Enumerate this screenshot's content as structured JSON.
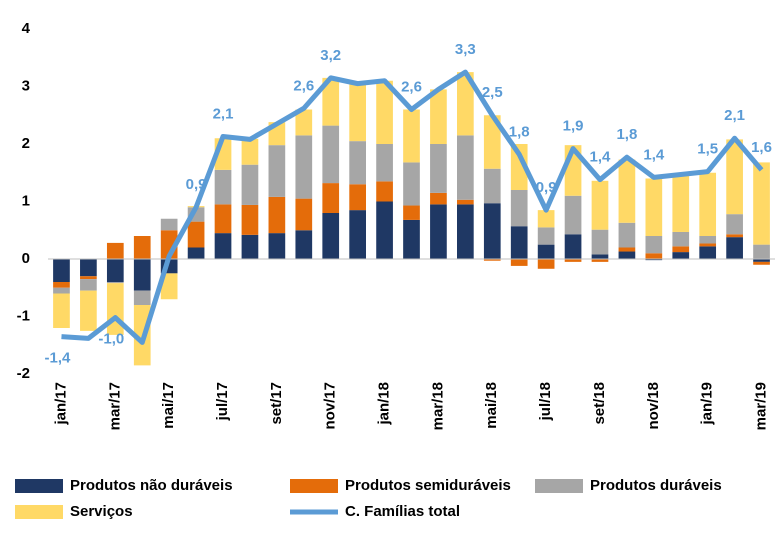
{
  "chart_data": {
    "type": "bar",
    "stacked": true,
    "grid": false,
    "categories": [
      "jan/17",
      null,
      "mar/17",
      null,
      "mai/17",
      null,
      "jul/17",
      null,
      "set/17",
      null,
      "nov/17",
      null,
      "jan/18",
      null,
      "mar/18",
      null,
      "mai/18",
      null,
      "jul/18",
      null,
      "set/18",
      null,
      "nov/18",
      null,
      "jan/19",
      null,
      "mar/19"
    ],
    "ylim": [
      -2,
      4
    ],
    "yticks": [
      -2,
      -1,
      0,
      1,
      2,
      3,
      4
    ],
    "series": [
      {
        "name": "Produtos não duráveis",
        "color": "#1f3864",
        "values": [
          -0.4,
          -0.3,
          -0.4,
          -0.55,
          -0.25,
          0.2,
          0.45,
          0.42,
          0.45,
          0.5,
          0.8,
          0.85,
          1.0,
          0.68,
          0.95,
          0.95,
          0.97,
          0.57,
          0.25,
          0.43,
          0.08,
          0.13,
          -0.02,
          0.12,
          0.22,
          0.38,
          -0.05
        ]
      },
      {
        "name": "Produtos semiduráveis",
        "color": "#e46c0a",
        "values": [
          -0.1,
          -0.05,
          0.28,
          0.4,
          0.5,
          0.45,
          0.5,
          0.52,
          0.63,
          0.55,
          0.52,
          0.45,
          0.35,
          0.25,
          0.2,
          0.08,
          -0.03,
          -0.12,
          -0.17,
          -0.05,
          -0.05,
          0.07,
          0.1,
          0.1,
          0.05,
          0.05,
          -0.05
        ]
      },
      {
        "name": "Produtos duráveis",
        "color": "#a6a6a6",
        "values": [
          -0.1,
          -0.2,
          -0.02,
          -0.25,
          0.2,
          0.25,
          0.6,
          0.7,
          0.9,
          1.1,
          1.0,
          0.75,
          0.65,
          0.75,
          0.85,
          1.12,
          0.6,
          0.63,
          0.3,
          0.67,
          0.43,
          0.43,
          0.3,
          0.25,
          0.13,
          0.35,
          0.25
        ]
      },
      {
        "name": "Serviços",
        "color": "#ffd966",
        "values": [
          -0.6,
          -0.7,
          -0.9,
          -1.05,
          -0.45,
          0.02,
          0.55,
          0.45,
          0.4,
          0.45,
          0.83,
          1.0,
          1.1,
          0.92,
          0.95,
          1.1,
          0.93,
          0.8,
          0.3,
          0.88,
          0.85,
          1.1,
          1.0,
          1.0,
          1.1,
          1.3,
          1.43
        ]
      },
      {
        "name": "C. Famílias total",
        "type": "line",
        "color": "#5b9bd5",
        "values": [
          -1.35,
          -1.38,
          -1.02,
          -1.45,
          0.05,
          0.9,
          2.13,
          2.08,
          2.35,
          2.62,
          3.15,
          3.05,
          3.1,
          2.6,
          2.95,
          3.25,
          2.5,
          1.82,
          0.85,
          1.92,
          1.38,
          1.77,
          1.42,
          1.47,
          1.52,
          2.1,
          1.55
        ],
        "value_labels": [
          "-1,4",
          null,
          "-1,0",
          null,
          null,
          "0,9",
          "2,1",
          null,
          null,
          "2,6",
          "3,2",
          null,
          null,
          "2,6",
          null,
          "3,3",
          "2,5",
          "1,8",
          "0,9",
          "1,9",
          "1,4",
          "1,8",
          "1,4",
          null,
          "1,5",
          "2,1",
          "1,6"
        ]
      }
    ]
  }
}
